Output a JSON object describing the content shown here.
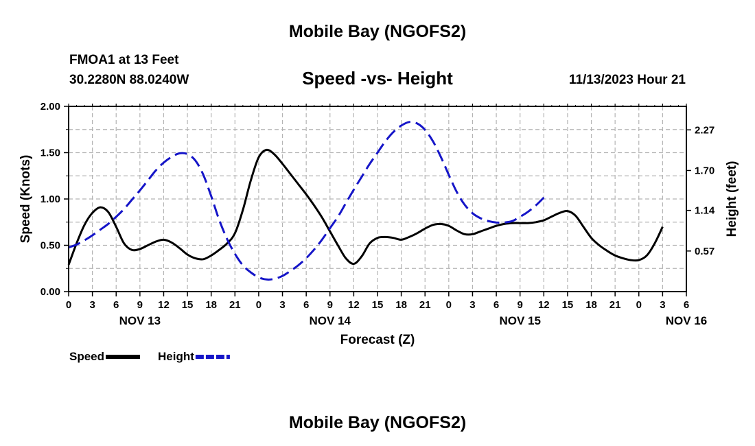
{
  "page": {
    "title": "Mobile Bay (NGOFS2)",
    "station_line": "FMOA1 at 13 Feet",
    "coords": "30.2280N  88.0240W",
    "datetime": "11/13/2023 Hour 21",
    "footer_title": "Mobile Bay (NGOFS2)"
  },
  "colors": {
    "speed": "#000000",
    "height": "#1515c8",
    "grid": "#b4b4b4"
  },
  "chart_data": {
    "type": "line",
    "title": "Speed -vs- Height",
    "xlabel": "Forecast (Z)",
    "ylabel": "Speed (Knots)",
    "y2label": "Height (feet)",
    "xlim": [
      0,
      78
    ],
    "ylim": [
      0,
      2
    ],
    "y2lim": [
      0,
      2.6
    ],
    "yticks": [
      0,
      0.5,
      1,
      1.5,
      2
    ],
    "ytick_labels": [
      "0.00",
      "0.50",
      "1.00",
      "1.50",
      "2.00"
    ],
    "y2ticks": [
      0.57,
      1.14,
      1.7,
      2.27
    ],
    "y2tick_labels": [
      "0.57",
      "1.14",
      "1.70",
      "2.27"
    ],
    "xtick_labels": [
      "0",
      "3",
      "6",
      "9",
      "12",
      "15",
      "18",
      "21",
      "0",
      "3",
      "6",
      "9",
      "12",
      "15",
      "18",
      "21",
      "0",
      "3",
      "6",
      "9",
      "12",
      "15",
      "18",
      "21",
      "0",
      "3",
      "6"
    ],
    "day_labels": [
      {
        "x": 9,
        "label": "NOV 13"
      },
      {
        "x": 33,
        "label": "NOV 14"
      },
      {
        "x": 57,
        "label": "NOV 15"
      },
      {
        "x": 78,
        "label": "NOV 16"
      }
    ],
    "series": [
      {
        "name": "Speed",
        "axis": "left",
        "style": "solid",
        "points": [
          [
            0,
            0.29
          ],
          [
            1,
            0.52
          ],
          [
            2,
            0.72
          ],
          [
            3,
            0.85
          ],
          [
            4,
            0.91
          ],
          [
            5,
            0.86
          ],
          [
            6,
            0.7
          ],
          [
            7,
            0.52
          ],
          [
            8,
            0.45
          ],
          [
            9,
            0.46
          ],
          [
            10,
            0.5
          ],
          [
            11,
            0.54
          ],
          [
            12,
            0.56
          ],
          [
            13,
            0.53
          ],
          [
            14,
            0.47
          ],
          [
            15,
            0.4
          ],
          [
            16,
            0.36
          ],
          [
            17,
            0.35
          ],
          [
            18,
            0.39
          ],
          [
            19,
            0.45
          ],
          [
            20,
            0.52
          ],
          [
            21,
            0.63
          ],
          [
            22,
            0.88
          ],
          [
            23,
            1.2
          ],
          [
            24,
            1.45
          ],
          [
            25,
            1.53
          ],
          [
            26,
            1.48
          ],
          [
            27,
            1.38
          ],
          [
            28,
            1.27
          ],
          [
            29,
            1.16
          ],
          [
            30,
            1.05
          ],
          [
            31,
            0.93
          ],
          [
            32,
            0.8
          ],
          [
            33,
            0.65
          ],
          [
            34,
            0.5
          ],
          [
            35,
            0.36
          ],
          [
            36,
            0.3
          ],
          [
            37,
            0.38
          ],
          [
            38,
            0.52
          ],
          [
            39,
            0.58
          ],
          [
            40,
            0.59
          ],
          [
            41,
            0.58
          ],
          [
            42,
            0.56
          ],
          [
            43,
            0.59
          ],
          [
            44,
            0.63
          ],
          [
            45,
            0.68
          ],
          [
            46,
            0.72
          ],
          [
            47,
            0.73
          ],
          [
            48,
            0.71
          ],
          [
            49,
            0.66
          ],
          [
            50,
            0.62
          ],
          [
            51,
            0.62
          ],
          [
            52,
            0.65
          ],
          [
            53,
            0.68
          ],
          [
            54,
            0.71
          ],
          [
            55,
            0.73
          ],
          [
            56,
            0.74
          ],
          [
            57,
            0.74
          ],
          [
            58,
            0.74
          ],
          [
            59,
            0.75
          ],
          [
            60,
            0.77
          ],
          [
            61,
            0.81
          ],
          [
            62,
            0.85
          ],
          [
            63,
            0.87
          ],
          [
            64,
            0.82
          ],
          [
            65,
            0.7
          ],
          [
            66,
            0.58
          ],
          [
            67,
            0.5
          ],
          [
            68,
            0.44
          ],
          [
            69,
            0.39
          ],
          [
            70,
            0.36
          ],
          [
            71,
            0.34
          ],
          [
            72,
            0.34
          ],
          [
            73,
            0.39
          ],
          [
            74,
            0.52
          ],
          [
            75,
            0.7
          ]
        ]
      },
      {
        "name": "Height",
        "axis": "right",
        "style": "dashed",
        "points": [
          [
            0,
            0.62
          ],
          [
            1,
            0.66
          ],
          [
            2,
            0.72
          ],
          [
            3,
            0.79
          ],
          [
            4,
            0.87
          ],
          [
            5,
            0.95
          ],
          [
            6,
            1.05
          ],
          [
            7,
            1.16
          ],
          [
            8,
            1.29
          ],
          [
            9,
            1.42
          ],
          [
            10,
            1.56
          ],
          [
            11,
            1.7
          ],
          [
            12,
            1.81
          ],
          [
            13,
            1.89
          ],
          [
            14,
            1.94
          ],
          [
            15,
            1.93
          ],
          [
            16,
            1.84
          ],
          [
            17,
            1.64
          ],
          [
            18,
            1.34
          ],
          [
            19,
            1.01
          ],
          [
            20,
            0.74
          ],
          [
            21,
            0.53
          ],
          [
            22,
            0.37
          ],
          [
            23,
            0.27
          ],
          [
            24,
            0.2
          ],
          [
            25,
            0.17
          ],
          [
            26,
            0.18
          ],
          [
            27,
            0.22
          ],
          [
            28,
            0.29
          ],
          [
            29,
            0.37
          ],
          [
            30,
            0.47
          ],
          [
            31,
            0.59
          ],
          [
            32,
            0.73
          ],
          [
            33,
            0.89
          ],
          [
            34,
            1.05
          ],
          [
            35,
            1.24
          ],
          [
            36,
            1.43
          ],
          [
            37,
            1.61
          ],
          [
            38,
            1.79
          ],
          [
            39,
            1.95
          ],
          [
            40,
            2.11
          ],
          [
            41,
            2.24
          ],
          [
            42,
            2.33
          ],
          [
            43,
            2.38
          ],
          [
            44,
            2.36
          ],
          [
            45,
            2.27
          ],
          [
            46,
            2.11
          ],
          [
            47,
            1.89
          ],
          [
            48,
            1.64
          ],
          [
            49,
            1.4
          ],
          [
            50,
            1.22
          ],
          [
            51,
            1.1
          ],
          [
            52,
            1.03
          ],
          [
            53,
            0.99
          ],
          [
            54,
            0.97
          ],
          [
            55,
            0.97
          ],
          [
            56,
            0.99
          ],
          [
            57,
            1.05
          ],
          [
            58,
            1.12
          ],
          [
            59,
            1.21
          ],
          [
            60,
            1.32
          ]
        ]
      }
    ],
    "legend": [
      {
        "label": "Speed",
        "style": "solid"
      },
      {
        "label": "Height",
        "style": "dashed"
      }
    ],
    "grid": true
  }
}
